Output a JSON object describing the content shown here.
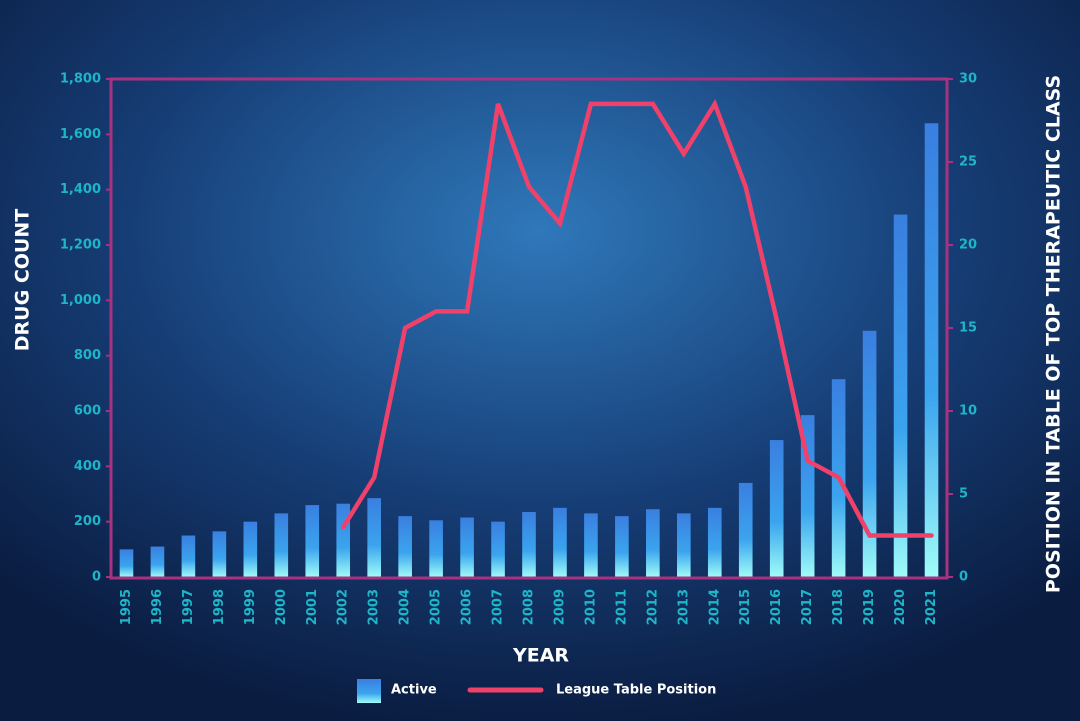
{
  "chart_data": {
    "type": "bar-line",
    "x_label": "YEAR",
    "y_label": "DRUG COUNT",
    "y2_label": "POSITION IN TABLE OF TOP THERAPEUTIC CLASS",
    "categories": [
      "1995",
      "1996",
      "1997",
      "1998",
      "1999",
      "2000",
      "2001",
      "2002",
      "2003",
      "2004",
      "2005",
      "2006",
      "2007",
      "2008",
      "2009",
      "2010",
      "2011",
      "2012",
      "2013",
      "2014",
      "2015",
      "2016",
      "2017",
      "2018",
      "2019",
      "2020",
      "2021"
    ],
    "series": [
      {
        "name": "Active",
        "type": "bar",
        "color": "#3a8ee6",
        "axis": "y",
        "values": [
          100,
          110,
          150,
          165,
          200,
          230,
          260,
          265,
          285,
          220,
          205,
          215,
          200,
          235,
          250,
          230,
          220,
          245,
          230,
          250,
          340,
          495,
          585,
          715,
          890,
          1310,
          1640
        ]
      },
      {
        "name": "League Table Position",
        "type": "line",
        "color": "#f0416a",
        "axis": "y2",
        "values": [
          null,
          null,
          null,
          null,
          null,
          null,
          null,
          3,
          6,
          15,
          16,
          16,
          28.5,
          23.5,
          21.3,
          28.5,
          28.5,
          28.5,
          25.5,
          28.5,
          23.5,
          15.5,
          7,
          6,
          2.5,
          2.5,
          2.5
        ]
      }
    ],
    "ylim": [
      0,
      1800
    ],
    "yticks": [
      0,
      200,
      400,
      600,
      800,
      {
        "value": 1000,
        "label": "1,000"
      },
      {
        "value": 1200,
        "label": "1,200"
      },
      {
        "value": 1400,
        "label": "1,400"
      },
      {
        "value": 1600,
        "label": "1,600"
      },
      {
        "value": 1800,
        "label": "1,800"
      }
    ],
    "y2lim": [
      0,
      30
    ],
    "y2ticks": [
      0,
      5,
      10,
      15,
      20,
      25,
      30
    ]
  }
}
